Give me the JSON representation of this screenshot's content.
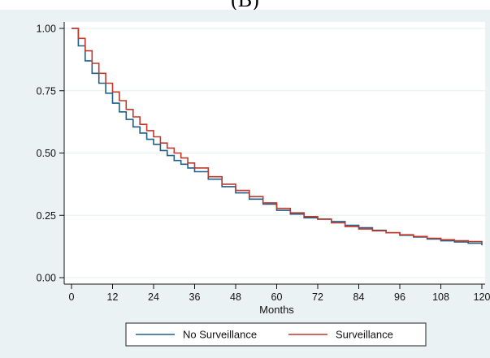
{
  "panel_label": "(B)",
  "chart_data": {
    "type": "line",
    "title": "",
    "xlabel": "Months",
    "ylabel": "",
    "xlim": [
      0,
      120
    ],
    "ylim": [
      0,
      1
    ],
    "xticks": [
      0,
      12,
      24,
      36,
      48,
      60,
      72,
      84,
      96,
      108,
      120
    ],
    "xtick_labels": [
      "0",
      "12",
      "24",
      "36",
      "48",
      "60",
      "72",
      "84",
      "96",
      "108",
      "120"
    ],
    "yticks": [
      0,
      0.25,
      0.5,
      0.75,
      1
    ],
    "ytick_labels": [
      "0.00",
      "0.25",
      "0.50",
      "0.75",
      "1.00"
    ],
    "grid": "horizontal",
    "legend_position": "bottom",
    "step": true,
    "colors": {
      "background": "#eaf2f3",
      "plot_bg": "#ffffff",
      "grid": "#eaf2f3"
    },
    "series": [
      {
        "name": "No Surveillance",
        "color": "#1f5f8b",
        "x": [
          0,
          2,
          4,
          6,
          8,
          10,
          12,
          14,
          16,
          18,
          20,
          22,
          24,
          26,
          28,
          30,
          32,
          34,
          36,
          40,
          44,
          48,
          52,
          56,
          60,
          64,
          68,
          72,
          76,
          80,
          84,
          88,
          92,
          96,
          100,
          104,
          108,
          112,
          116,
          120
        ],
        "y": [
          1.0,
          0.93,
          0.87,
          0.82,
          0.78,
          0.74,
          0.7,
          0.665,
          0.635,
          0.605,
          0.58,
          0.555,
          0.535,
          0.51,
          0.49,
          0.47,
          0.455,
          0.44,
          0.425,
          0.395,
          0.365,
          0.34,
          0.315,
          0.295,
          0.27,
          0.255,
          0.24,
          0.235,
          0.225,
          0.21,
          0.2,
          0.19,
          0.18,
          0.17,
          0.163,
          0.155,
          0.148,
          0.143,
          0.138,
          0.13
        ]
      },
      {
        "name": "Surveillance",
        "color": "#c0392b",
        "x": [
          0,
          2,
          4,
          6,
          8,
          10,
          12,
          14,
          16,
          18,
          20,
          22,
          24,
          26,
          28,
          30,
          32,
          34,
          36,
          40,
          44,
          48,
          52,
          56,
          60,
          64,
          68,
          72,
          76,
          80,
          84,
          88,
          92,
          96,
          100,
          104,
          108,
          112,
          116,
          120
        ],
        "y": [
          1.0,
          0.96,
          0.91,
          0.86,
          0.82,
          0.78,
          0.745,
          0.71,
          0.675,
          0.645,
          0.615,
          0.59,
          0.565,
          0.54,
          0.52,
          0.5,
          0.48,
          0.46,
          0.44,
          0.405,
          0.375,
          0.35,
          0.325,
          0.3,
          0.278,
          0.26,
          0.245,
          0.235,
          0.22,
          0.205,
          0.195,
          0.188,
          0.18,
          0.172,
          0.165,
          0.158,
          0.152,
          0.148,
          0.145,
          0.14
        ]
      }
    ]
  }
}
